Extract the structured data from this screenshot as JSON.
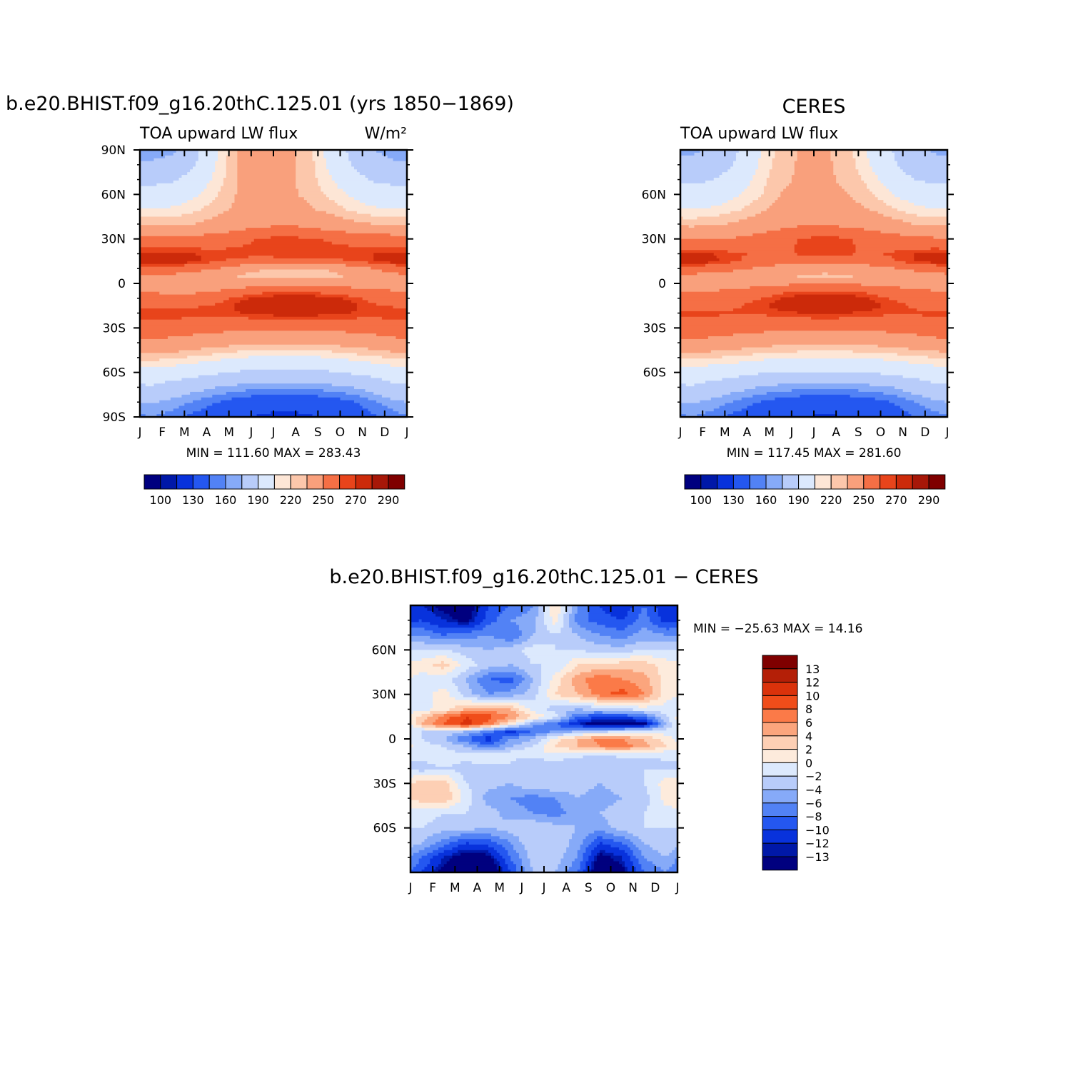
{
  "palettes": {
    "abs": [
      "#00007f",
      "#0018a8",
      "#0832dc",
      "#2457f0",
      "#5282f5",
      "#86aaf8",
      "#b8ccfa",
      "#dce9fd",
      "#fde6d6",
      "#fcc7ab",
      "#f9a07c",
      "#f56f45",
      "#e8441b",
      "#cc2a0a",
      "#a71708",
      "#7f0000"
    ],
    "diff": [
      "#7f0000",
      "#b41f07",
      "#da320b",
      "#f04d1a",
      "#fb7a48",
      "#fba57d",
      "#fdcfb4",
      "#fdebdc",
      "#dce9fd",
      "#b8ccfa",
      "#86aaf8",
      "#5282f5",
      "#2457f0",
      "#0832dc",
      "#0018a8",
      "#00007f"
    ]
  },
  "chart_data": [
    {
      "id": "model",
      "type": "heatmap",
      "title": "b.e20.BHIST.f09_g16.20thC.125.01 (yrs 1850−1869)",
      "left_label": "TOA upward LW flux",
      "right_label": "W/m²",
      "x_ticks": [
        "J",
        "F",
        "M",
        "A",
        "M",
        "J",
        "J",
        "A",
        "S",
        "O",
        "N",
        "D",
        "J"
      ],
      "y_ticks": [
        {
          "value": 90,
          "label": "90N"
        },
        {
          "value": 60,
          "label": "60N"
        },
        {
          "value": 30,
          "label": "30N"
        },
        {
          "value": 0,
          "label": "0"
        },
        {
          "value": -30,
          "label": "30S"
        },
        {
          "value": -60,
          "label": "60S"
        },
        {
          "value": -90,
          "label": "90S"
        }
      ],
      "ylim": [
        -90,
        90
      ],
      "min_max_text": "MIN = 111.60 MAX = 283.43",
      "colorbar": {
        "orientation": "horizontal",
        "labels": [
          "100",
          "130",
          "160",
          "190",
          "220",
          "250",
          "270",
          "290"
        ]
      },
      "levels": [
        90,
        100,
        110,
        130,
        150,
        160,
        170,
        190,
        210,
        220,
        230,
        250,
        265,
        270,
        280,
        290,
        300
      ],
      "lat": [
        90,
        80,
        70,
        60,
        50,
        40,
        30,
        20,
        15,
        10,
        5,
        0,
        -5,
        -10,
        -15,
        -20,
        -30,
        -40,
        -50,
        -60,
        -70,
        -80,
        -90
      ],
      "month_values": [
        [
          165,
          168,
          185,
          210,
          232,
          240,
          235,
          225,
          205,
          185,
          170,
          165
        ],
        [
          172,
          175,
          190,
          212,
          232,
          238,
          234,
          226,
          208,
          190,
          176,
          172
        ],
        [
          185,
          188,
          198,
          215,
          232,
          236,
          233,
          227,
          212,
          198,
          188,
          185
        ],
        [
          198,
          200,
          208,
          220,
          232,
          235,
          233,
          228,
          218,
          208,
          200,
          198
        ],
        [
          210,
          212,
          218,
          226,
          234,
          237,
          236,
          232,
          226,
          218,
          212,
          210
        ],
        [
          228,
          228,
          230,
          236,
          242,
          246,
          248,
          246,
          240,
          234,
          230,
          228
        ],
        [
          258,
          256,
          256,
          258,
          262,
          266,
          268,
          266,
          264,
          262,
          260,
          258
        ],
        [
          272,
          272,
          270,
          268,
          268,
          268,
          270,
          270,
          268,
          268,
          270,
          272
        ],
        [
          276,
          275,
          272,
          266,
          262,
          260,
          260,
          260,
          262,
          266,
          270,
          274
        ],
        [
          262,
          260,
          256,
          250,
          240,
          232,
          228,
          228,
          232,
          240,
          250,
          258
        ],
        [
          248,
          246,
          242,
          236,
          228,
          222,
          220,
          220,
          224,
          232,
          240,
          246
        ],
        [
          244,
          242,
          240,
          238,
          240,
          244,
          246,
          246,
          244,
          242,
          242,
          244
        ],
        [
          248,
          246,
          246,
          250,
          256,
          262,
          264,
          264,
          260,
          256,
          252,
          250
        ],
        [
          256,
          256,
          258,
          262,
          268,
          272,
          274,
          274,
          272,
          268,
          262,
          258
        ],
        [
          262,
          262,
          264,
          266,
          272,
          276,
          280,
          280,
          278,
          272,
          266,
          264
        ],
        [
          268,
          268,
          268,
          268,
          270,
          272,
          274,
          274,
          272,
          270,
          268,
          268
        ],
        [
          262,
          260,
          258,
          256,
          254,
          254,
          254,
          254,
          254,
          256,
          258,
          262
        ],
        [
          246,
          244,
          240,
          236,
          234,
          232,
          232,
          232,
          234,
          236,
          240,
          244
        ],
        [
          224,
          222,
          218,
          214,
          210,
          208,
          208,
          208,
          210,
          214,
          218,
          222
        ],
        [
          204,
          200,
          196,
          192,
          188,
          186,
          186,
          186,
          188,
          192,
          196,
          202
        ],
        [
          188,
          182,
          176,
          170,
          166,
          164,
          164,
          164,
          166,
          170,
          178,
          186
        ],
        [
          172,
          166,
          158,
          150,
          142,
          138,
          136,
          138,
          142,
          148,
          158,
          168
        ],
        [
          160,
          154,
          146,
          140,
          132,
          128,
          126,
          128,
          132,
          138,
          148,
          156
        ]
      ]
    },
    {
      "id": "obs",
      "type": "heatmap",
      "title": "CERES",
      "left_label": "TOA upward LW flux",
      "x_ticks": [
        "J",
        "F",
        "M",
        "A",
        "M",
        "J",
        "J",
        "A",
        "S",
        "O",
        "N",
        "D",
        "J"
      ],
      "y_ticks": [
        {
          "value": 60,
          "label": "60N"
        },
        {
          "value": 30,
          "label": "30N"
        },
        {
          "value": 0,
          "label": "0"
        },
        {
          "value": -30,
          "label": "30S"
        },
        {
          "value": -60,
          "label": "60S"
        }
      ],
      "ylim": [
        -90,
        90
      ],
      "min_max_text": "MIN = 117.45 MAX = 281.60",
      "colorbar": {
        "orientation": "horizontal",
        "labels": [
          "100",
          "130",
          "160",
          "190",
          "220",
          "250",
          "270",
          "290"
        ]
      },
      "levels": [
        90,
        100,
        110,
        130,
        150,
        160,
        170,
        190,
        210,
        220,
        230,
        250,
        265,
        270,
        280,
        290,
        300
      ],
      "lat": [
        90,
        80,
        70,
        60,
        50,
        40,
        30,
        20,
        15,
        10,
        5,
        0,
        -5,
        -10,
        -15,
        -20,
        -30,
        -40,
        -50,
        -60,
        -70,
        -80,
        -90
      ],
      "month_values": [
        [
          168,
          172,
          188,
          208,
          224,
          232,
          232,
          224,
          208,
          190,
          174,
          168
        ],
        [
          174,
          178,
          192,
          210,
          226,
          232,
          232,
          226,
          210,
          194,
          180,
          174
        ],
        [
          186,
          190,
          200,
          214,
          228,
          232,
          232,
          228,
          216,
          202,
          190,
          186
        ],
        [
          198,
          200,
          208,
          218,
          230,
          233,
          233,
          230,
          222,
          210,
          202,
          198
        ],
        [
          210,
          212,
          218,
          226,
          236,
          238,
          238,
          236,
          230,
          222,
          214,
          210
        ],
        [
          226,
          228,
          232,
          238,
          244,
          248,
          248,
          246,
          242,
          236,
          230,
          228
        ],
        [
          250,
          250,
          252,
          256,
          262,
          266,
          268,
          266,
          262,
          258,
          254,
          252
        ],
        [
          272,
          270,
          266,
          264,
          264,
          266,
          266,
          266,
          264,
          266,
          270,
          272
        ],
        [
          274,
          272,
          266,
          260,
          258,
          258,
          258,
          258,
          260,
          264,
          270,
          274
        ],
        [
          260,
          258,
          254,
          248,
          242,
          238,
          238,
          238,
          242,
          248,
          254,
          258
        ],
        [
          246,
          244,
          240,
          236,
          232,
          228,
          226,
          228,
          232,
          236,
          242,
          246
        ],
        [
          244,
          244,
          244,
          244,
          246,
          248,
          248,
          248,
          246,
          244,
          244,
          244
        ],
        [
          250,
          250,
          252,
          256,
          262,
          266,
          266,
          266,
          262,
          256,
          252,
          250
        ],
        [
          258,
          258,
          260,
          264,
          270,
          274,
          276,
          274,
          270,
          264,
          260,
          258
        ],
        [
          262,
          262,
          264,
          268,
          274,
          278,
          281,
          278,
          274,
          268,
          264,
          262
        ],
        [
          266,
          266,
          266,
          266,
          268,
          270,
          272,
          270,
          268,
          266,
          266,
          266
        ],
        [
          262,
          260,
          258,
          256,
          254,
          254,
          254,
          254,
          254,
          256,
          258,
          262
        ],
        [
          246,
          244,
          240,
          236,
          234,
          234,
          234,
          234,
          234,
          236,
          240,
          244
        ],
        [
          222,
          220,
          218,
          214,
          212,
          210,
          210,
          210,
          212,
          214,
          218,
          220
        ],
        [
          204,
          200,
          196,
          192,
          190,
          188,
          188,
          188,
          190,
          194,
          198,
          202
        ],
        [
          188,
          182,
          176,
          170,
          166,
          164,
          164,
          164,
          166,
          170,
          178,
          186
        ],
        [
          172,
          166,
          158,
          150,
          144,
          140,
          138,
          140,
          144,
          150,
          160,
          168
        ],
        [
          160,
          154,
          146,
          140,
          134,
          130,
          128,
          130,
          134,
          140,
          150,
          156
        ]
      ]
    },
    {
      "id": "diff",
      "type": "heatmap",
      "title": "b.e20.BHIST.f09_g16.20thC.125.01 − CERES",
      "x_ticks": [
        "J",
        "F",
        "M",
        "A",
        "M",
        "J",
        "J",
        "A",
        "S",
        "O",
        "N",
        "D",
        "J"
      ],
      "y_ticks": [
        {
          "value": 60,
          "label": "60N"
        },
        {
          "value": 30,
          "label": "30N"
        },
        {
          "value": 0,
          "label": "0"
        },
        {
          "value": -30,
          "label": "30S"
        },
        {
          "value": -60,
          "label": "60S"
        }
      ],
      "ylim": [
        -90,
        90
      ],
      "min_max_text": "MIN = −25.63 MAX =  14.16",
      "colorbar": {
        "orientation": "vertical",
        "labels": [
          "13",
          "12",
          "10",
          "8",
          "6",
          "4",
          "2",
          "0",
          "−2",
          "−4",
          "−6",
          "−8",
          "−10",
          "−12",
          "−13"
        ]
      },
      "levels": [
        100,
        13,
        12,
        10,
        8,
        6,
        4,
        2,
        0,
        -2,
        -4,
        -6,
        -8,
        -10,
        -12,
        -13,
        -100
      ],
      "lat": [
        90,
        80,
        70,
        60,
        50,
        40,
        30,
        20,
        15,
        10,
        5,
        0,
        -5,
        -10,
        -15,
        -20,
        -30,
        -40,
        -50,
        -60,
        -70,
        -80,
        -90
      ],
      "month_values": [
        [
          -12,
          -14,
          -15,
          -10,
          -8,
          -6,
          2,
          -6,
          -10,
          -12,
          -8,
          -12
        ],
        [
          -10,
          -12,
          -14,
          -9,
          -6,
          -5,
          1,
          -7,
          -9,
          -10,
          -7,
          -11
        ],
        [
          -6,
          -8,
          -7,
          -6,
          -8,
          -4,
          -2,
          -4,
          -6,
          -7,
          -5,
          -6
        ],
        [
          -2,
          -2,
          -3,
          -4,
          -3,
          -1,
          -2,
          -2,
          -3,
          -3,
          -2,
          -2
        ],
        [
          1,
          3,
          -1,
          -3,
          -4,
          -2,
          -2,
          2,
          2,
          3,
          3,
          1
        ],
        [
          -1,
          -1,
          -4,
          -8,
          -9,
          -4,
          1,
          5,
          8,
          6,
          5,
          1
        ],
        [
          -1,
          1,
          -3,
          -6,
          -5,
          -3,
          2,
          4,
          7,
          9,
          6,
          1
        ],
        [
          -1,
          1,
          4,
          5,
          4,
          -1,
          -3,
          -4,
          -3,
          -2,
          -1,
          -1
        ],
        [
          3,
          7,
          10,
          9,
          6,
          2,
          -1,
          -8,
          -10,
          -10,
          -8,
          -2
        ],
        [
          4,
          8,
          11,
          7,
          1,
          -5,
          -8,
          -12,
          -15,
          -15,
          -14,
          -4
        ],
        [
          -2,
          -2,
          -4,
          -7,
          -11,
          -8,
          -6,
          -4,
          -3,
          -2,
          -1,
          -1
        ],
        [
          -2,
          -4,
          -8,
          -11,
          -6,
          -4,
          1,
          4,
          7,
          6,
          4,
          1
        ],
        [
          -1,
          -2,
          -4,
          -8,
          -4,
          -2,
          2,
          4,
          6,
          7,
          5,
          2
        ],
        [
          -1,
          -1,
          -2,
          -2,
          -1,
          0,
          0,
          -1,
          -1,
          -1,
          -1,
          -1
        ],
        [
          -2,
          -1,
          -2,
          -1,
          -2,
          -3,
          -2,
          -3,
          -4,
          -3,
          -3,
          -2
        ],
        [
          -3,
          -2,
          -3,
          -3,
          -2,
          -2,
          -3,
          -3,
          -3,
          -3,
          -2,
          -2
        ],
        [
          3,
          3,
          -2,
          -3,
          -4,
          -2,
          -2,
          -3,
          -4,
          -3,
          -2,
          1
        ],
        [
          3,
          4,
          -1,
          -5,
          -6,
          -7,
          -6,
          -4,
          -5,
          -4,
          -3,
          1
        ],
        [
          -1,
          -2,
          -2,
          -3,
          -5,
          -6,
          -7,
          -5,
          -4,
          -3,
          -2,
          -1
        ],
        [
          -2,
          -3,
          -3,
          -4,
          -3,
          -2,
          -3,
          -4,
          -5,
          -3,
          -2,
          -2
        ],
        [
          -4,
          -7,
          -10,
          -9,
          -6,
          -2,
          -2,
          -5,
          -10,
          -8,
          -4,
          -2
        ],
        [
          -8,
          -12,
          -15,
          -14,
          -8,
          -3,
          -3,
          -6,
          -14,
          -12,
          -6,
          -4
        ],
        [
          -10,
          -14,
          -18,
          -16,
          -10,
          -4,
          -4,
          -8,
          -16,
          -14,
          -8,
          -6
        ]
      ]
    }
  ]
}
